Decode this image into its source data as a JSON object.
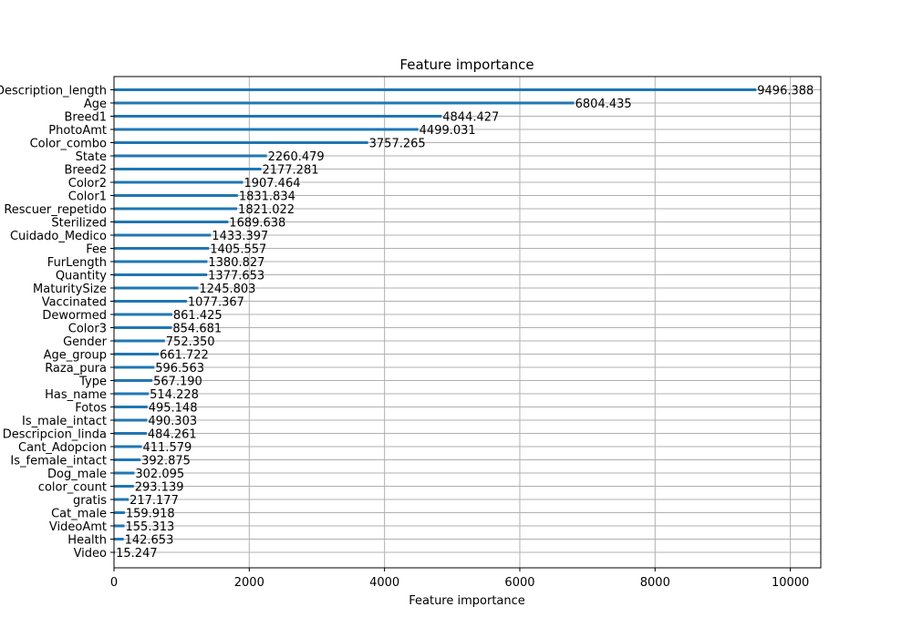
{
  "chart_data": {
    "type": "bar",
    "orientation": "horizontal",
    "title": "Feature importance",
    "xlabel": "Feature importance",
    "ylabel": "",
    "xlim": [
      0,
      10450
    ],
    "xticks": [
      0,
      2000,
      4000,
      6000,
      8000,
      10000
    ],
    "grid": true,
    "bar_color": "#1f77b4",
    "categories": [
      "Description_length",
      "Age",
      "Breed1",
      "PhotoAmt",
      "Color_combo",
      "State",
      "Breed2",
      "Color2",
      "Color1",
      "Rescuer_repetido",
      "Sterilized",
      "Cuidado_Medico",
      "Fee",
      "FurLength",
      "Quantity",
      "MaturitySize",
      "Vaccinated",
      "Dewormed",
      "Color3",
      "Gender",
      "Age_group",
      "Raza_pura",
      "Type",
      "Has_name",
      "Fotos",
      "Is_male_intact",
      "Descripcion_linda",
      "Cant_Adopcion",
      "Is_female_intact",
      "Dog_male",
      "color_count",
      "gratis",
      "Cat_male",
      "VideoAmt",
      "Health",
      "Video"
    ],
    "values": [
      9496.388,
      6804.435,
      4844.427,
      4499.031,
      3757.265,
      2260.479,
      2177.281,
      1907.464,
      1831.834,
      1821.022,
      1689.638,
      1433.397,
      1405.557,
      1380.827,
      1377.653,
      1245.803,
      1077.367,
      861.425,
      854.681,
      752.35,
      661.722,
      596.563,
      567.19,
      514.228,
      495.148,
      490.303,
      484.261,
      411.579,
      392.875,
      302.095,
      293.139,
      217.177,
      159.918,
      155.313,
      142.653,
      15.247
    ],
    "value_labels": [
      "9496.388",
      "6804.435",
      "4844.427",
      "4499.031",
      "3757.265",
      "2260.479",
      "2177.281",
      "1907.464",
      "1831.834",
      "1821.022",
      "1689.638",
      "1433.397",
      "1405.557",
      "1380.827",
      "1377.653",
      "1245.803",
      "1077.367",
      "861.425",
      "854.681",
      "752.350",
      "661.722",
      "596.563",
      "567.190",
      "514.228",
      "495.148",
      "490.303",
      "484.261",
      "411.579",
      "392.875",
      "302.095",
      "293.139",
      "217.177",
      "159.918",
      "155.313",
      "142.653",
      "15.247"
    ]
  }
}
